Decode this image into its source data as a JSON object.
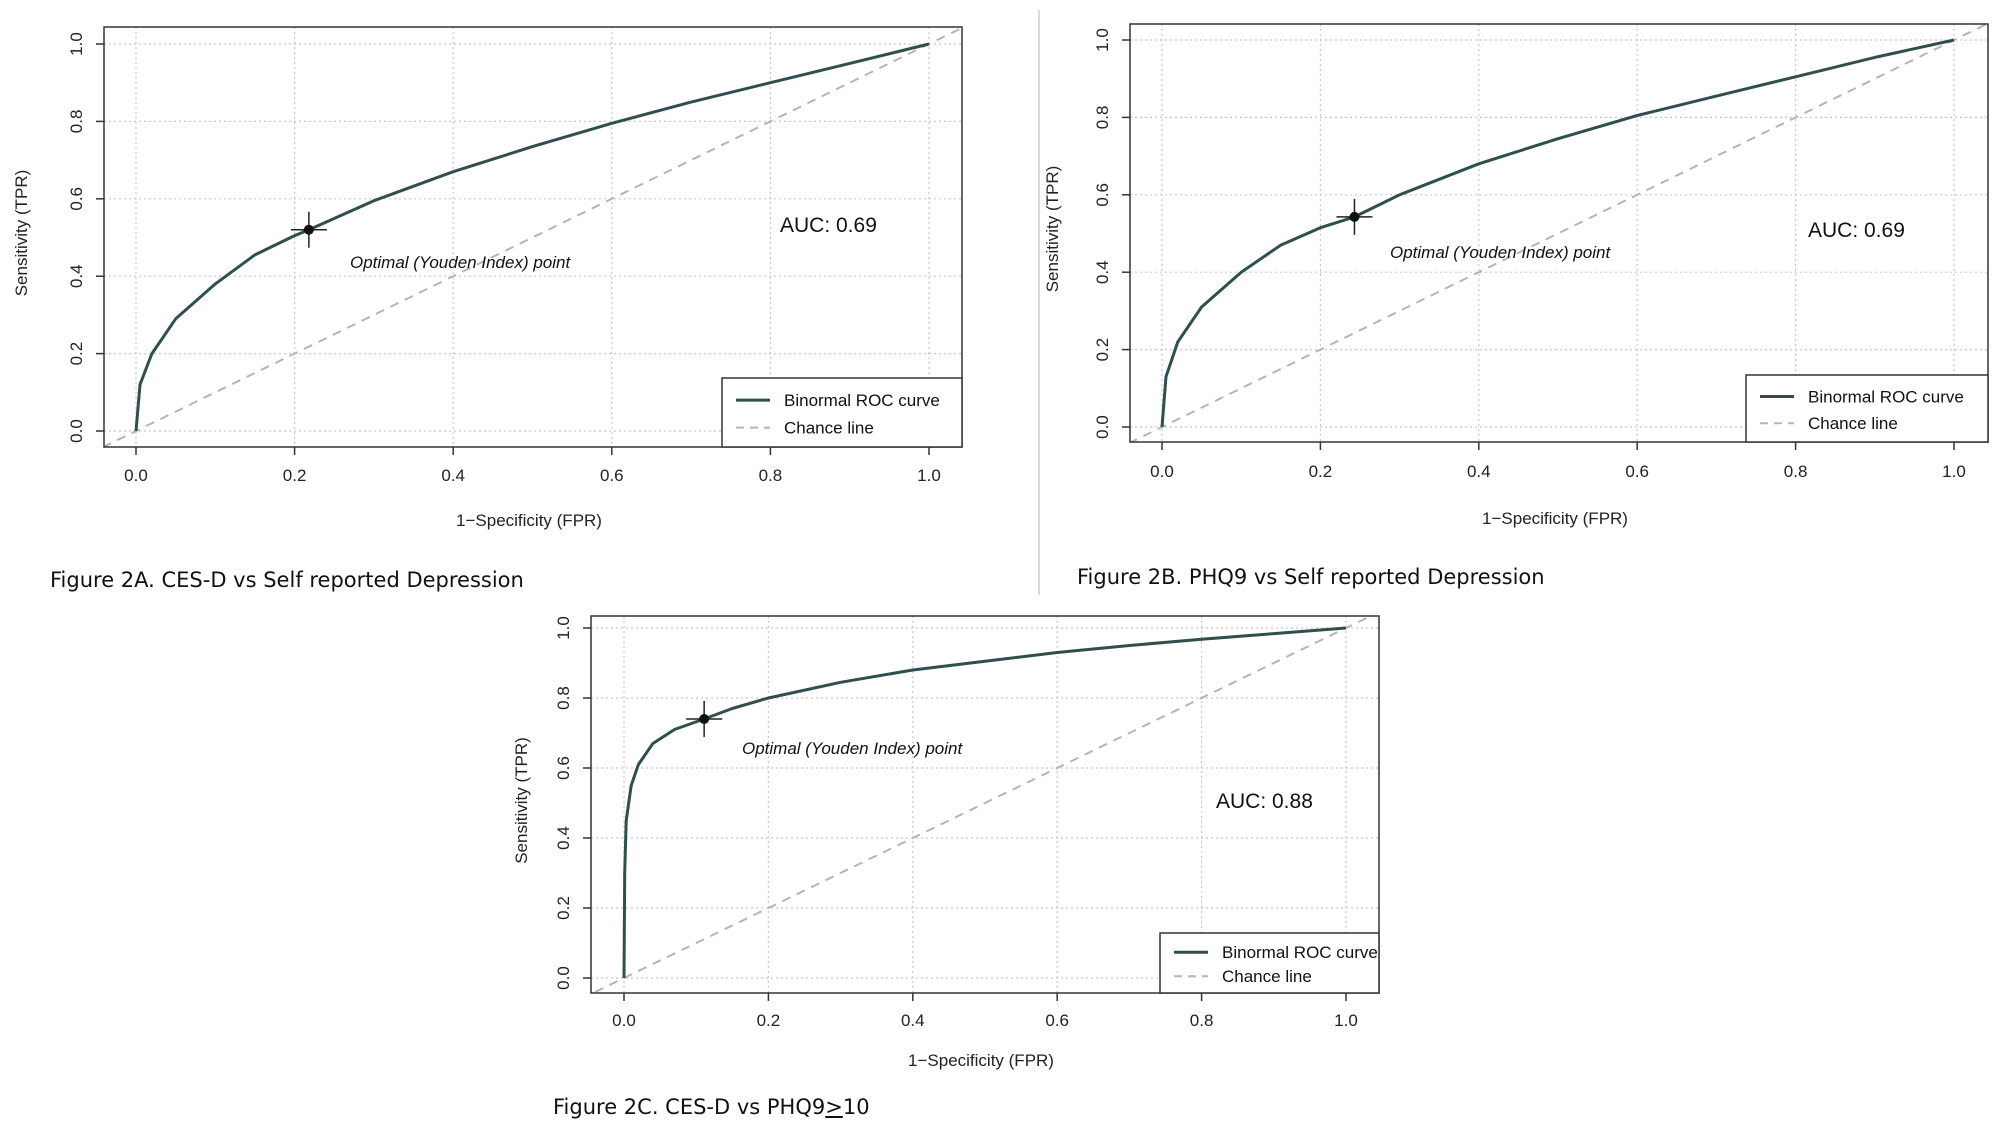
{
  "colors": {
    "curve": "#2f4f4f",
    "chance": "#b5b5b5",
    "grid": "#c8c8c8",
    "axis": "#333333",
    "separator": "#c8c8c8"
  },
  "charts": [
    {
      "caption": "Figure 2A. CES-D vs Self reported Depression",
      "xlabel": "1−Specificity (FPR)",
      "ylabel": "Sensitivity (TPR)",
      "auc_label": "AUC: 0.69",
      "point_label": "Optimal (Youden Index) point",
      "xticks": [
        "0.0",
        "0.2",
        "0.4",
        "0.6",
        "0.8",
        "1.0"
      ],
      "yticks": [
        "0.0",
        "0.2",
        "0.4",
        "0.6",
        "0.8",
        "1.0"
      ],
      "legend": [
        "Binormal ROC curve",
        "Chance line"
      ]
    },
    {
      "caption": "Figure 2B. PHQ9 vs Self reported Depression",
      "xlabel": "1−Specificity (FPR)",
      "ylabel": "Sensitivity (TPR)",
      "auc_label": "AUC: 0.69",
      "point_label": "Optimal (Youden Index) point",
      "xticks": [
        "0.0",
        "0.2",
        "0.4",
        "0.6",
        "0.8",
        "1.0"
      ],
      "yticks": [
        "0.0",
        "0.2",
        "0.4",
        "0.6",
        "0.8",
        "1.0"
      ],
      "legend": [
        "Binormal ROC curve",
        "Chance line"
      ]
    },
    {
      "caption_prefix": "Figure 2C. CES-D vs PHQ9",
      "caption_symbol": ">",
      "caption_suffix": "10",
      "xlabel": "1−Specificity (FPR)",
      "ylabel": "Sensitivity (TPR)",
      "auc_label": "AUC: 0.88",
      "point_label": "Optimal (Youden Index) point",
      "xticks": [
        "0.0",
        "0.2",
        "0.4",
        "0.6",
        "0.8",
        "1.0"
      ],
      "yticks": [
        "0.0",
        "0.2",
        "0.4",
        "0.6",
        "0.8",
        "1.0"
      ],
      "legend": [
        "Binormal ROC curve",
        "Chance line"
      ]
    }
  ],
  "chart_data": [
    {
      "type": "line",
      "xlabel": "1−Specificity (FPR)",
      "ylabel": "Sensitivity (TPR)",
      "xlim": [
        0,
        1
      ],
      "ylim": [
        0,
        1
      ],
      "grid": true,
      "legend_position": "bottom-right",
      "series": [
        {
          "name": "Binormal ROC curve",
          "x": [
            0,
            0.005,
            0.02,
            0.05,
            0.1,
            0.15,
            0.2,
            0.218,
            0.3,
            0.4,
            0.5,
            0.6,
            0.7,
            0.8,
            0.9,
            1.0
          ],
          "y": [
            0,
            0.12,
            0.2,
            0.29,
            0.38,
            0.455,
            0.505,
            0.52,
            0.595,
            0.67,
            0.735,
            0.795,
            0.85,
            0.9,
            0.95,
            1.0
          ]
        },
        {
          "name": "Chance line",
          "x": [
            0,
            1
          ],
          "y": [
            0,
            1
          ]
        }
      ],
      "optimal_point": {
        "x": 0.218,
        "y": 0.52
      },
      "auc": 0.69
    },
    {
      "type": "line",
      "xlabel": "1−Specificity (FPR)",
      "ylabel": "Sensitivity (TPR)",
      "xlim": [
        0,
        1
      ],
      "ylim": [
        0,
        1
      ],
      "grid": true,
      "legend_position": "bottom-right",
      "series": [
        {
          "name": "Binormal ROC curve",
          "x": [
            0,
            0.005,
            0.02,
            0.05,
            0.1,
            0.15,
            0.2,
            0.243,
            0.3,
            0.4,
            0.5,
            0.6,
            0.7,
            0.8,
            0.9,
            1.0
          ],
          "y": [
            0,
            0.13,
            0.22,
            0.31,
            0.4,
            0.47,
            0.515,
            0.543,
            0.6,
            0.68,
            0.745,
            0.805,
            0.855,
            0.905,
            0.955,
            1.0
          ]
        },
        {
          "name": "Chance line",
          "x": [
            0,
            1
          ],
          "y": [
            0,
            1
          ]
        }
      ],
      "optimal_point": {
        "x": 0.243,
        "y": 0.543
      },
      "auc": 0.69
    },
    {
      "type": "line",
      "xlabel": "1−Specificity (FPR)",
      "ylabel": "Sensitivity (TPR)",
      "xlim": [
        0,
        1
      ],
      "ylim": [
        0,
        1
      ],
      "grid": true,
      "legend_position": "bottom-right",
      "series": [
        {
          "name": "Binormal ROC curve",
          "x": [
            0,
            0.001,
            0.003,
            0.01,
            0.02,
            0.04,
            0.07,
            0.111,
            0.15,
            0.2,
            0.3,
            0.4,
            0.5,
            0.6,
            0.7,
            0.8,
            0.9,
            1.0
          ],
          "y": [
            0,
            0.3,
            0.45,
            0.55,
            0.61,
            0.67,
            0.71,
            0.74,
            0.77,
            0.8,
            0.845,
            0.88,
            0.905,
            0.93,
            0.95,
            0.968,
            0.984,
            1.0
          ]
        },
        {
          "name": "Chance line",
          "x": [
            0,
            1
          ],
          "y": [
            0,
            1
          ]
        }
      ],
      "optimal_point": {
        "x": 0.111,
        "y": 0.74
      },
      "auc": 0.88
    }
  ]
}
